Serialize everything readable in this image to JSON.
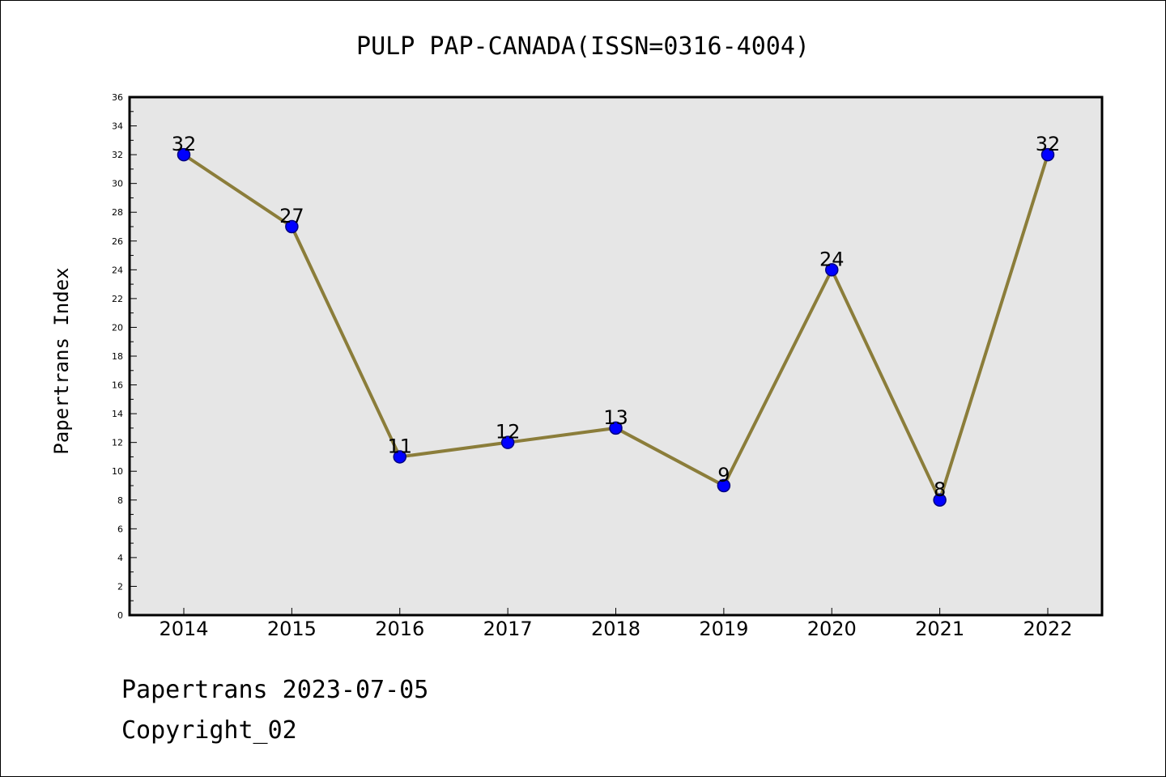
{
  "chart_data": {
    "type": "line",
    "title": "PULP PAP-CANADA(ISSN=0316-4004)",
    "ylabel": "Papertrans Index",
    "xlabel": "",
    "ylim": [
      0,
      36
    ],
    "ytick_step": 2,
    "categories": [
      "2014",
      "2015",
      "2016",
      "2017",
      "2018",
      "2019",
      "2020",
      "2021",
      "2022"
    ],
    "series": [
      {
        "values": [
          32,
          27,
          11,
          12,
          13,
          9,
          24,
          8,
          32
        ]
      }
    ],
    "grid": false,
    "colors": {
      "line": "#8b7d3a",
      "marker": "#0000ff",
      "marker_edge": "#000080",
      "plot_background": "#e6e6e6"
    }
  },
  "footer": {
    "date_line": "Papertrans 2023-07-05",
    "copyright": "Copyright_02"
  }
}
